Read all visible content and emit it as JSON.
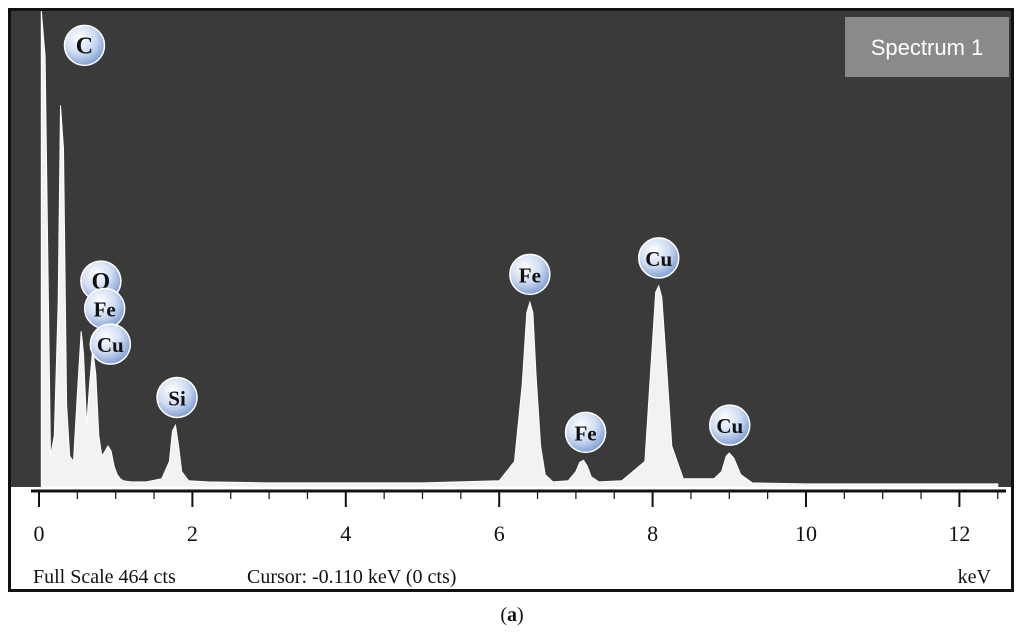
{
  "chart_data": {
    "type": "line",
    "title": "Spectrum 1",
    "x_unit": "keV",
    "xlim": [
      0,
      12.5
    ],
    "x_ticks": [
      0,
      2,
      4,
      6,
      8,
      10,
      12
    ],
    "full_scale_cts": 464,
    "series": [
      {
        "x": [
          0.03,
          0.08,
          0.15,
          0.2,
          0.25,
          0.28,
          0.32,
          0.36,
          0.4,
          0.45,
          0.5,
          0.55,
          0.58,
          0.62,
          0.66,
          0.7,
          0.74,
          0.78,
          0.82,
          0.86,
          0.9,
          0.94,
          0.98,
          1.02,
          1.06,
          1.1,
          1.2,
          1.4,
          1.6,
          1.7,
          1.74,
          1.78,
          1.82,
          1.86,
          1.95,
          2.2,
          3.0,
          4.0,
          5.0,
          6.0,
          6.2,
          6.3,
          6.36,
          6.4,
          6.44,
          6.48,
          6.54,
          6.6,
          6.7,
          6.9,
          7.0,
          7.05,
          7.1,
          7.15,
          7.2,
          7.3,
          7.6,
          7.9,
          7.98,
          8.04,
          8.08,
          8.12,
          8.18,
          8.25,
          8.4,
          8.8,
          8.9,
          8.96,
          9.0,
          9.06,
          9.15,
          9.3,
          10.0,
          11.0,
          12.0,
          12.5
        ],
        "y": [
          464,
          420,
          30,
          50,
          180,
          372,
          330,
          80,
          30,
          25,
          90,
          152,
          130,
          60,
          100,
          135,
          110,
          50,
          30,
          35,
          40,
          35,
          20,
          12,
          8,
          6,
          5,
          5,
          8,
          25,
          55,
          60,
          40,
          15,
          6,
          5,
          4,
          4,
          4,
          6,
          25,
          100,
          170,
          180,
          170,
          110,
          40,
          12,
          5,
          6,
          15,
          24,
          26,
          20,
          10,
          5,
          6,
          25,
          120,
          190,
          196,
          185,
          120,
          40,
          8,
          8,
          15,
          30,
          33,
          28,
          12,
          4,
          3,
          3,
          3,
          3
        ]
      }
    ],
    "peak_labels": [
      {
        "label": "C",
        "x": 0.28,
        "y": 372
      },
      {
        "label": "O",
        "x": 0.52,
        "y": 152
      },
      {
        "label": "Fe",
        "x": 0.7,
        "y": 135
      },
      {
        "label": "Cu",
        "x": 0.93,
        "y": 110
      },
      {
        "label": "Si",
        "x": 1.8,
        "y": 60
      },
      {
        "label": "Fe",
        "x": 6.4,
        "y": 180
      },
      {
        "label": "Fe",
        "x": 7.1,
        "y": 26
      },
      {
        "label": "Cu",
        "x": 8.08,
        "y": 196
      },
      {
        "label": "Cu",
        "x": 8.98,
        "y": 33
      }
    ],
    "colors": {
      "plot_bg": "#3a3a3a",
      "spectrum": "#f2f2f2",
      "label_badge": "#c9d9f2",
      "title_box": "#8a8a8a"
    }
  },
  "status": {
    "full_scale": "Full Scale 464 cts",
    "cursor": "Cursor: -0.110 keV (0 cts)",
    "unit": "keV"
  },
  "caption": "a"
}
